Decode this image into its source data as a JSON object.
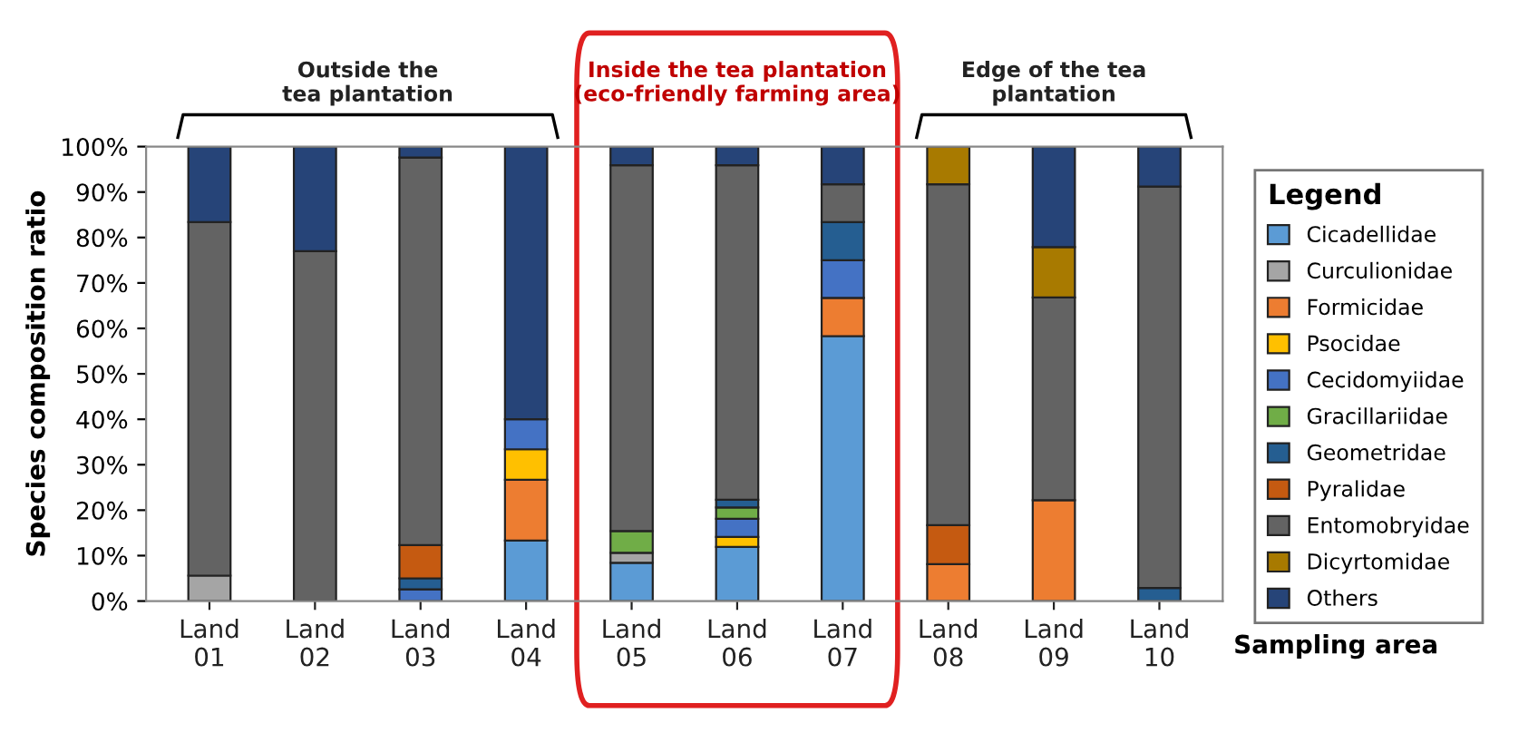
{
  "chart_data": {
    "type": "bar",
    "stacked": true,
    "xlabel": "Sampling area",
    "ylabel": "Species composition ratio",
    "legend_title": "Legend",
    "legend": "right",
    "grid": false,
    "categories": [
      "Land\n01",
      "Land\n02",
      "Land\n03",
      "Land\n04",
      "Land\n05",
      "Land\n06",
      "Land\n07",
      "Land\n08",
      "Land\n09",
      "Land\n10"
    ],
    "ylim": [
      0,
      100
    ],
    "yticks": [
      {
        "value": 0,
        "label": "0%"
      },
      {
        "value": 10,
        "label": "10%"
      },
      {
        "value": 20,
        "label": "20%"
      },
      {
        "value": 30,
        "label": "30%"
      },
      {
        "value": 40,
        "label": "40%"
      },
      {
        "value": 50,
        "label": "50%"
      },
      {
        "value": 60,
        "label": "60%"
      },
      {
        "value": 70,
        "label": "70%"
      },
      {
        "value": 80,
        "label": "80%"
      },
      {
        "value": 90,
        "label": "90%"
      },
      {
        "value": 100,
        "label": "100%"
      }
    ],
    "annotations": [
      "Outside the\ntea plantation",
      "Inside the tea plantation\n(eco-friendly farming area)",
      "Edge of the tea\nplantation"
    ],
    "series": [
      {
        "name": "Cicadellidae",
        "color": "#5b9bd5",
        "values": [
          null,
          null,
          null,
          13.3,
          8.4,
          11.9,
          58.3,
          null,
          null,
          null
        ]
      },
      {
        "name": "Curculionidae",
        "color": "#a5a5a5",
        "values": [
          5.6,
          null,
          null,
          null,
          2.2,
          null,
          null,
          null,
          null,
          null
        ]
      },
      {
        "name": "Formicidae",
        "color": "#ed7d31",
        "values": [
          null,
          null,
          null,
          13.4,
          null,
          null,
          8.4,
          8.1,
          22.2,
          null
        ]
      },
      {
        "name": "Psocidae",
        "color": "#ffc000",
        "values": [
          null,
          null,
          null,
          6.7,
          null,
          2.2,
          null,
          null,
          null,
          null
        ]
      },
      {
        "name": "Cecidomyiidae",
        "color": "#4472c4",
        "values": [
          null,
          null,
          2.6,
          6.6,
          null,
          4.0,
          8.3,
          null,
          null,
          null
        ]
      },
      {
        "name": "Gracillariidae",
        "color": "#70ad47",
        "values": [
          null,
          null,
          null,
          null,
          4.8,
          2.5,
          null,
          null,
          null,
          null
        ]
      },
      {
        "name": "Geometridae",
        "color": "#255e91",
        "values": [
          null,
          null,
          2.4,
          null,
          null,
          1.7,
          8.4,
          null,
          null,
          2.9
        ]
      },
      {
        "name": "Pyralidae",
        "color": "#c55a11",
        "values": [
          null,
          null,
          7.3,
          null,
          null,
          null,
          null,
          8.6,
          null,
          null
        ]
      },
      {
        "name": "Entomobryidae",
        "color": "#636363",
        "values": [
          77.8,
          77,
          85.3,
          null,
          80.5,
          73.6,
          8.3,
          75,
          44.6,
          88.3
        ]
      },
      {
        "name": "Dicyrtomidae",
        "color": "#a87a00",
        "values": [
          null,
          null,
          null,
          null,
          null,
          null,
          null,
          8.3,
          11.1,
          null
        ]
      },
      {
        "name": "Others",
        "color": "#264478",
        "values": [
          16.6,
          23,
          2.4,
          60,
          4.1,
          4.1,
          8.3,
          null,
          22.1,
          8.8
        ]
      }
    ]
  }
}
